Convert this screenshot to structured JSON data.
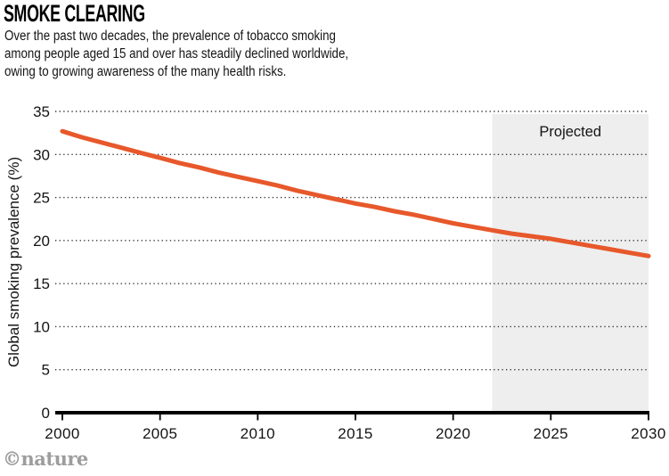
{
  "header": {
    "title": "SMOKE CLEARING",
    "subtitle_lines": [
      "Over the past two decades, the prevalence of tobacco smoking",
      "among people aged 15 and over has steadily declined worldwide,",
      "owing to growing awareness of the many health risks."
    ]
  },
  "credit": "©nature",
  "colors": {
    "line": "#E7582B",
    "projected_fill": "#EEEEEE",
    "axis": "#000000",
    "gridline": "#333333",
    "text": "#141414",
    "credit_gray": "#9D9D9D"
  },
  "chart_data": {
    "type": "line",
    "title": "SMOKE CLEARING",
    "xlabel": "",
    "ylabel": "Global smoking prevalence (%)",
    "xlim": [
      2000,
      2030
    ],
    "ylim": [
      0,
      35
    ],
    "x_ticks": [
      2000,
      2005,
      2010,
      2015,
      2020,
      2025,
      2030
    ],
    "y_ticks": [
      0,
      5,
      10,
      15,
      20,
      25,
      30,
      35
    ],
    "grid": "horizontal-dotted",
    "legend": "none",
    "projected_region": {
      "label": "Projected",
      "x_start": 2022,
      "x_end": 2030
    },
    "series": [
      {
        "name": "Global smoking prevalence",
        "color": "#E7582B",
        "x": [
          2000,
          2001,
          2002,
          2003,
          2004,
          2005,
          2006,
          2007,
          2008,
          2009,
          2010,
          2011,
          2012,
          2013,
          2014,
          2015,
          2016,
          2017,
          2018,
          2019,
          2020,
          2021,
          2022,
          2023,
          2024,
          2025,
          2026,
          2027,
          2028,
          2029,
          2030
        ],
        "values": [
          32.7,
          32.0,
          31.4,
          30.8,
          30.2,
          29.6,
          29.0,
          28.5,
          27.9,
          27.4,
          26.9,
          26.4,
          25.8,
          25.3,
          24.8,
          24.3,
          23.9,
          23.4,
          23.0,
          22.5,
          22.0,
          21.6,
          21.2,
          20.8,
          20.5,
          20.2,
          19.8,
          19.4,
          19.0,
          18.6,
          18.2
        ]
      }
    ]
  }
}
